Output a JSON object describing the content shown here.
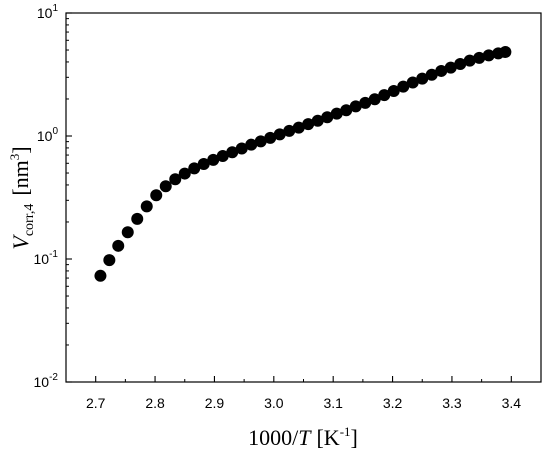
{
  "chart_data": {
    "type": "scatter",
    "xlabel": {
      "prefix": "1000/",
      "var": "T",
      "unit": "[K",
      "unit_sup": "-1",
      "unit_end": "]"
    },
    "ylabel": {
      "var": "V",
      "sub": "corr,4",
      "unit": "[nm",
      "unit_sup": "3",
      "unit_end": "]"
    },
    "xlim": [
      2.65,
      3.45
    ],
    "ylim": [
      0.01,
      10
    ],
    "yscale": "log",
    "x_ticks": [
      "2.7",
      "2.8",
      "2.9",
      "3.0",
      "3.1",
      "3.2",
      "3.3",
      "3.4"
    ],
    "y_ticks": [
      {
        "base": "10",
        "exp": "-2",
        "value": 0.01
      },
      {
        "base": "10",
        "exp": "-1",
        "value": 0.1
      },
      {
        "base": "10",
        "exp": "0",
        "value": 1
      },
      {
        "base": "10",
        "exp": "1",
        "value": 10
      }
    ],
    "grid": false,
    "marker_color": "#000000",
    "series": [
      {
        "x": [
          2.708,
          2.723,
          2.738,
          2.754,
          2.77,
          2.786,
          2.802,
          2.818,
          2.834,
          2.85,
          2.866,
          2.882,
          2.898,
          2.914,
          2.93,
          2.946,
          2.962,
          2.978,
          2.994,
          3.01,
          3.026,
          3.042,
          3.058,
          3.074,
          3.09,
          3.106,
          3.122,
          3.138,
          3.154,
          3.17,
          3.186,
          3.202,
          3.218,
          3.234,
          3.25,
          3.266,
          3.282,
          3.298,
          3.314,
          3.33,
          3.346,
          3.362,
          3.378,
          3.39
        ],
        "y": [
          0.073,
          0.098,
          0.128,
          0.165,
          0.212,
          0.268,
          0.33,
          0.39,
          0.445,
          0.495,
          0.545,
          0.592,
          0.64,
          0.688,
          0.738,
          0.792,
          0.85,
          0.905,
          0.965,
          1.03,
          1.1,
          1.17,
          1.25,
          1.33,
          1.42,
          1.52,
          1.62,
          1.74,
          1.86,
          1.99,
          2.15,
          2.32,
          2.52,
          2.72,
          2.93,
          3.15,
          3.38,
          3.6,
          3.85,
          4.1,
          4.32,
          4.52,
          4.7,
          4.82
        ]
      }
    ]
  }
}
